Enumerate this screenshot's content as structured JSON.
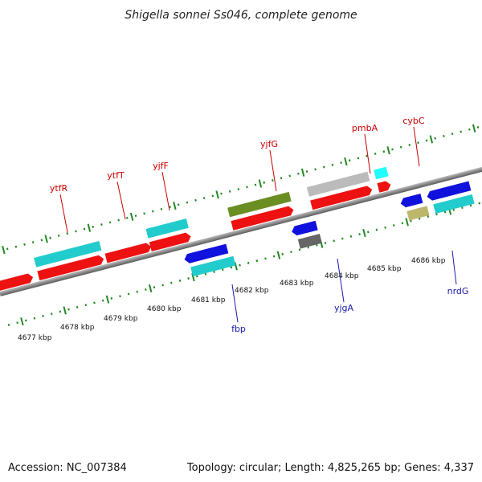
{
  "title": "Shigella sonnei Ss046, complete genome",
  "footer": {
    "accession": "Accession: NC_007384",
    "summary": "Topology: circular; Length: 4,825,265 bp; Genes: 4,337"
  },
  "ticks": [
    "4677 kbp",
    "4678 kbp",
    "4679 kbp",
    "4680 kbp",
    "4681 kbp",
    "4682 kbp",
    "4683 kbp",
    "4684 kbp",
    "4685 kbp",
    "4686 kbp"
  ],
  "gene_labels_forward": [
    "ytfR",
    "ytfT",
    "yjfF",
    "yjfG",
    "pmbA",
    "cybC"
  ],
  "gene_labels_reverse": [
    "fbp",
    "yjgA",
    "nrdG"
  ],
  "colors": {
    "cds": "#ee1111",
    "cyan": "#22cccc",
    "olive": "#6b8e23",
    "gray": "#bbbbbb",
    "darkgray": "#666666",
    "blue": "#1111dd",
    "khaki": "#bdb76b",
    "backbone": "#888888",
    "tick": "#228822"
  }
}
